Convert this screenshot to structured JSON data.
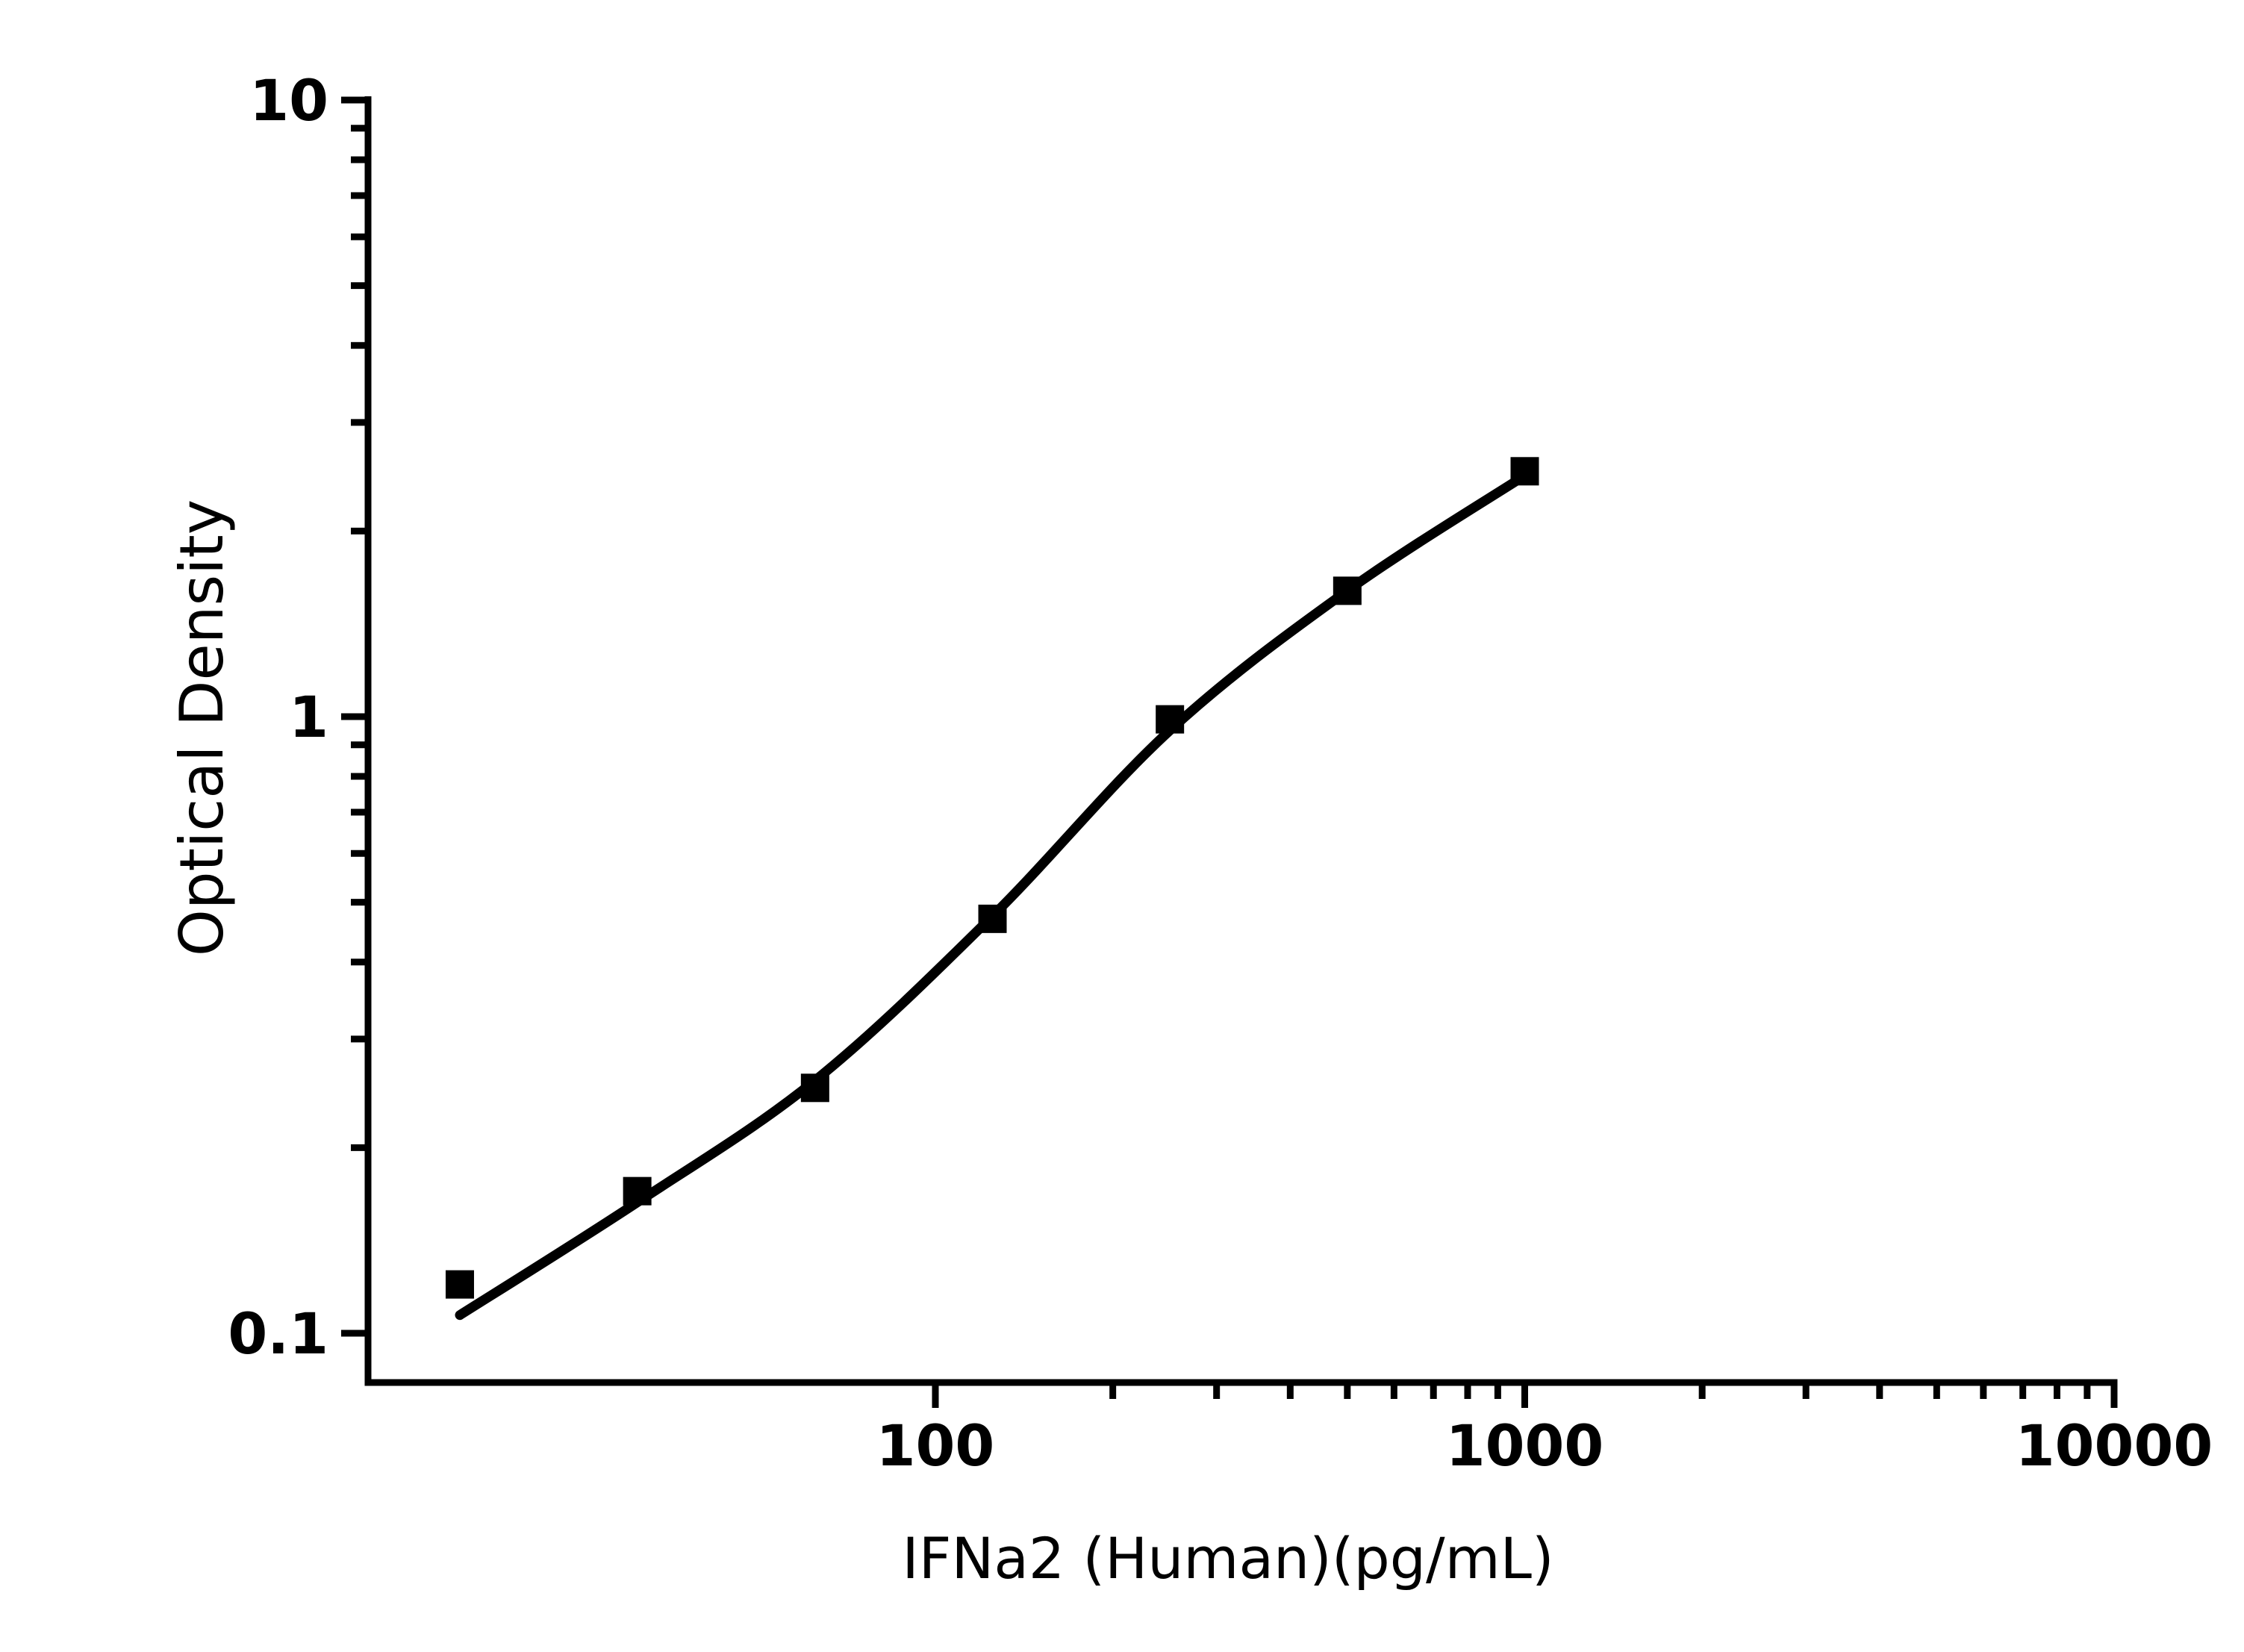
{
  "chart_data": {
    "type": "scatter",
    "title": "",
    "xlabel": "IFNa2 (Human)(pg/mL)",
    "ylabel": "Optical Density",
    "x_scale": "log",
    "y_scale": "log",
    "x_range": [
      10.9,
      10000
    ],
    "y_range": [
      0.083,
      10
    ],
    "grid": false,
    "legend": "none",
    "colors": {
      "foreground": "#000000",
      "background": "#ffffff"
    },
    "x_major_ticks": [
      {
        "value": 100,
        "label": "100"
      },
      {
        "value": 1000,
        "label": "1000"
      },
      {
        "value": 10000,
        "label": "10000"
      }
    ],
    "x_minor_ticks": [
      200,
      300,
      400,
      500,
      600,
      700,
      800,
      900,
      2000,
      3000,
      4000,
      5000,
      6000,
      7000,
      8000,
      9000
    ],
    "y_major_ticks": [
      {
        "value": 10,
        "label": "10"
      },
      {
        "value": 1,
        "label": "1"
      },
      {
        "value": 0.1,
        "label": "0.1"
      }
    ],
    "y_minor_ticks": [
      9,
      8,
      7,
      6,
      5,
      4,
      3,
      2,
      0.9,
      0.8,
      0.7,
      0.6,
      0.5,
      0.4,
      0.3,
      0.2
    ],
    "series": [
      {
        "name": "standard-points",
        "kind": "scatter",
        "marker": "filled-square",
        "color": "#000000",
        "points": [
          {
            "x": 15.6,
            "y": 0.12
          },
          {
            "x": 31.2,
            "y": 0.17
          },
          {
            "x": 62.5,
            "y": 0.25
          },
          {
            "x": 125,
            "y": 0.47
          },
          {
            "x": 250,
            "y": 0.99
          },
          {
            "x": 500,
            "y": 1.6
          },
          {
            "x": 1000,
            "y": 2.5
          }
        ]
      },
      {
        "name": "fit-curve",
        "kind": "line",
        "color": "#000000",
        "points": [
          {
            "x": 15.6,
            "y": 0.107
          },
          {
            "x": 31.2,
            "y": 0.163
          },
          {
            "x": 62.5,
            "y": 0.257
          },
          {
            "x": 125,
            "y": 0.475
          },
          {
            "x": 250,
            "y": 0.95
          },
          {
            "x": 500,
            "y": 1.6
          },
          {
            "x": 1000,
            "y": 2.46
          }
        ]
      }
    ]
  }
}
